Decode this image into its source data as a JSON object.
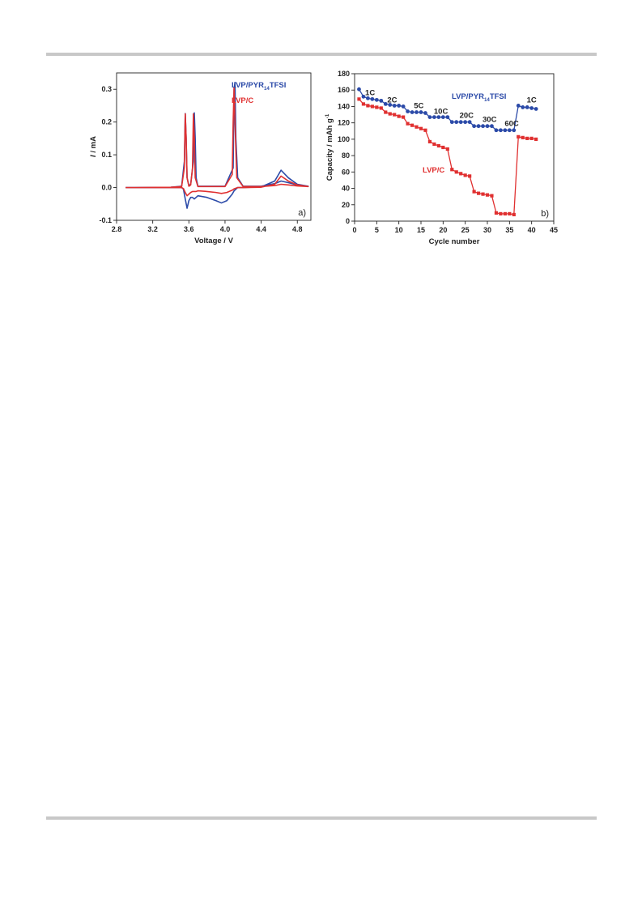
{
  "chart_data": [
    {
      "type": "line",
      "panel_label": "a)",
      "xlabel": "Voltage /  V",
      "ylabel": "I / mA",
      "xlim": [
        2.8,
        4.95
      ],
      "ylim": [
        -0.1,
        0.35
      ],
      "xticks": [
        "2.8",
        "3.2",
        "3.6",
        "4.0",
        "4.4",
        "4.8"
      ],
      "yticks": [
        "-0.1",
        "0.0",
        "0.1",
        "0.2",
        "0.3"
      ],
      "legend": [
        "LVP/PYR14TFSI",
        "LVP/C"
      ],
      "series": [
        {
          "name": "LVP/PYR14TFSI",
          "color": "#2b4aa8",
          "x": [
            2.9,
            3.4,
            3.52,
            3.54,
            3.56,
            3.58,
            3.6,
            3.62,
            3.64,
            3.66,
            3.68,
            3.7,
            3.8,
            3.9,
            3.96,
            4.02,
            4.08,
            4.1,
            4.12,
            4.14,
            4.2,
            4.4,
            4.55,
            4.62,
            4.7,
            4.8,
            4.92,
            4.92,
            4.8,
            4.7,
            4.62,
            4.55,
            4.4,
            4.2,
            4.14,
            4.12,
            4.11,
            4.1,
            4.09,
            4.0,
            3.8,
            3.7,
            3.68,
            3.67,
            3.66,
            3.65,
            3.62,
            3.6,
            3.58,
            3.57,
            3.56,
            3.55,
            3.52,
            3.4,
            3.0,
            2.9
          ],
          "y": [
            0.0,
            0.0,
            0.0,
            -0.005,
            -0.035,
            -0.063,
            -0.04,
            -0.03,
            -0.03,
            -0.035,
            -0.03,
            -0.025,
            -0.03,
            -0.04,
            -0.047,
            -0.04,
            -0.02,
            -0.01,
            -0.005,
            0.0,
            0.0,
            0.002,
            0.02,
            0.053,
            0.03,
            0.01,
            0.004,
            0.004,
            0.008,
            0.015,
            0.02,
            0.012,
            0.004,
            0.004,
            0.03,
            0.15,
            0.321,
            0.3,
            0.06,
            0.004,
            0.004,
            0.004,
            0.03,
            0.15,
            0.228,
            0.08,
            0.01,
            0.006,
            0.03,
            0.15,
            0.226,
            0.08,
            0.004,
            0.001,
            0.0,
            0.0
          ]
        },
        {
          "name": "LVP/C",
          "color": "#e03030",
          "x": [
            2.9,
            3.4,
            3.52,
            3.54,
            3.56,
            3.58,
            3.6,
            3.62,
            3.64,
            3.66,
            3.68,
            3.7,
            3.8,
            3.9,
            3.96,
            4.02,
            4.08,
            4.1,
            4.12,
            4.14,
            4.2,
            4.4,
            4.55,
            4.62,
            4.7,
            4.8,
            4.92,
            4.92,
            4.8,
            4.7,
            4.62,
            4.55,
            4.4,
            4.2,
            4.13,
            4.11,
            4.1,
            4.09,
            4.08,
            4.0,
            3.8,
            3.7,
            3.67,
            3.66,
            3.65,
            3.64,
            3.62,
            3.6,
            3.58,
            3.57,
            3.56,
            3.55,
            3.52,
            3.4,
            3.0,
            2.9
          ],
          "y": [
            0.0,
            0.0,
            0.0,
            -0.003,
            -0.015,
            -0.025,
            -0.02,
            -0.015,
            -0.012,
            -0.012,
            -0.012,
            -0.01,
            -0.012,
            -0.015,
            -0.018,
            -0.015,
            -0.008,
            -0.004,
            -0.002,
            0.0,
            0.0,
            0.001,
            0.01,
            0.035,
            0.02,
            0.008,
            0.003,
            0.003,
            0.005,
            0.008,
            0.01,
            0.006,
            0.003,
            0.003,
            0.03,
            0.2,
            0.305,
            0.2,
            0.04,
            0.003,
            0.003,
            0.003,
            0.03,
            0.15,
            0.225,
            0.06,
            0.008,
            0.004,
            0.03,
            0.15,
            0.225,
            0.06,
            0.003,
            0.001,
            0.0,
            0.0
          ]
        }
      ]
    },
    {
      "type": "line",
      "panel_label": "b)",
      "xlabel": "Cycle number",
      "ylabel": "Capacity / mAh g-1",
      "xlim": [
        0,
        45
      ],
      "ylim": [
        0,
        180
      ],
      "xticks": [
        "0",
        "5",
        "10",
        "15",
        "20",
        "25",
        "30",
        "35",
        "40",
        "45"
      ],
      "yticks": [
        "0",
        "20",
        "40",
        "60",
        "80",
        "100",
        "120",
        "140",
        "160",
        "180"
      ],
      "legend": [
        "LVP/PYR14TFSI",
        "LVP/C"
      ],
      "annotations": [
        {
          "text": "1C",
          "x": 3.5,
          "y": 154
        },
        {
          "text": "2C",
          "x": 8.5,
          "y": 145
        },
        {
          "text": "5C",
          "x": 14.5,
          "y": 138
        },
        {
          "text": "10C",
          "x": 19.5,
          "y": 131
        },
        {
          "text": "20C",
          "x": 25.3,
          "y": 126
        },
        {
          "text": "30C",
          "x": 30.5,
          "y": 121
        },
        {
          "text": "60C",
          "x": 35.5,
          "y": 116
        },
        {
          "text": "1C",
          "x": 40.0,
          "y": 145
        }
      ],
      "series": [
        {
          "name": "LVP/PYR14TFSI",
          "color": "#2b4aa8",
          "x": [
            1,
            2,
            3,
            4,
            5,
            6,
            7,
            8,
            9,
            10,
            11,
            12,
            13,
            14,
            15,
            16,
            17,
            18,
            19,
            20,
            21,
            22,
            23,
            24,
            25,
            26,
            27,
            28,
            29,
            30,
            31,
            32,
            33,
            34,
            35,
            36,
            37,
            38,
            39,
            40,
            41
          ],
          "y": [
            161,
            152,
            150,
            149,
            148,
            147,
            143,
            142,
            141,
            141,
            140,
            134,
            133,
            133,
            133,
            132,
            127,
            127,
            127,
            127,
            127,
            121,
            121,
            121,
            121,
            121,
            116,
            116,
            116,
            116,
            116,
            111,
            111,
            111,
            111,
            111,
            141,
            139,
            139,
            138,
            137
          ]
        },
        {
          "name": "LVP/C",
          "color": "#e03030",
          "x": [
            1,
            2,
            3,
            4,
            5,
            6,
            7,
            8,
            9,
            10,
            11,
            12,
            13,
            14,
            15,
            16,
            17,
            18,
            19,
            20,
            21,
            22,
            23,
            24,
            25,
            26,
            27,
            28,
            29,
            30,
            31,
            32,
            33,
            34,
            35,
            36,
            37,
            38,
            39,
            40,
            41
          ],
          "y": [
            149,
            143,
            141,
            140,
            139,
            138,
            133,
            131,
            130,
            128,
            127,
            119,
            117,
            115,
            113,
            111,
            97,
            94,
            92,
            90,
            88,
            63,
            60,
            58,
            56,
            55,
            36,
            34,
            33,
            32,
            31,
            10,
            9,
            9,
            9,
            8,
            103,
            102,
            101,
            101,
            100
          ]
        }
      ]
    }
  ]
}
